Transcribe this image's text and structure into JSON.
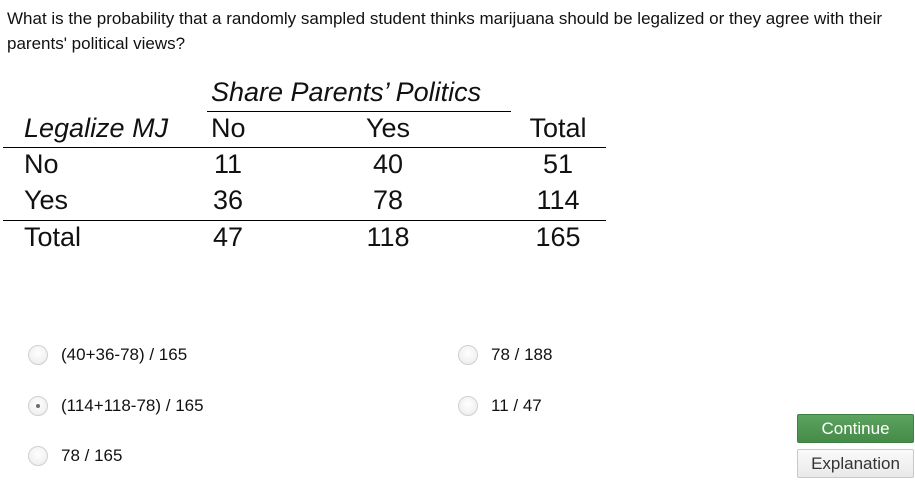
{
  "question": {
    "text": "What is the probability that a randomly sampled student thinks marijuana should be legalized or they agree with their parents' political views?"
  },
  "table": {
    "column_group_header": "Share Parents’ Politics",
    "row_header": "Legalize MJ",
    "columns": [
      "No",
      "Yes",
      "Total"
    ],
    "rows": [
      {
        "label": "No",
        "values": [
          "11",
          "40",
          "51"
        ]
      },
      {
        "label": "Yes",
        "values": [
          "36",
          "78",
          "114"
        ]
      },
      {
        "label": "Total",
        "values": [
          "47",
          "118",
          "165"
        ]
      }
    ]
  },
  "options": [
    {
      "label": "(40+36-78) / 165",
      "selected": false
    },
    {
      "label": "(114+118-78) / 165",
      "selected": true
    },
    {
      "label": "78 / 165",
      "selected": false
    },
    {
      "label": "78 / 188",
      "selected": false
    },
    {
      "label": "11 / 47",
      "selected": false
    }
  ],
  "buttons": {
    "continue_label": "Continue",
    "explanation_label": "Explanation",
    "continue_color": "#4e954f"
  }
}
